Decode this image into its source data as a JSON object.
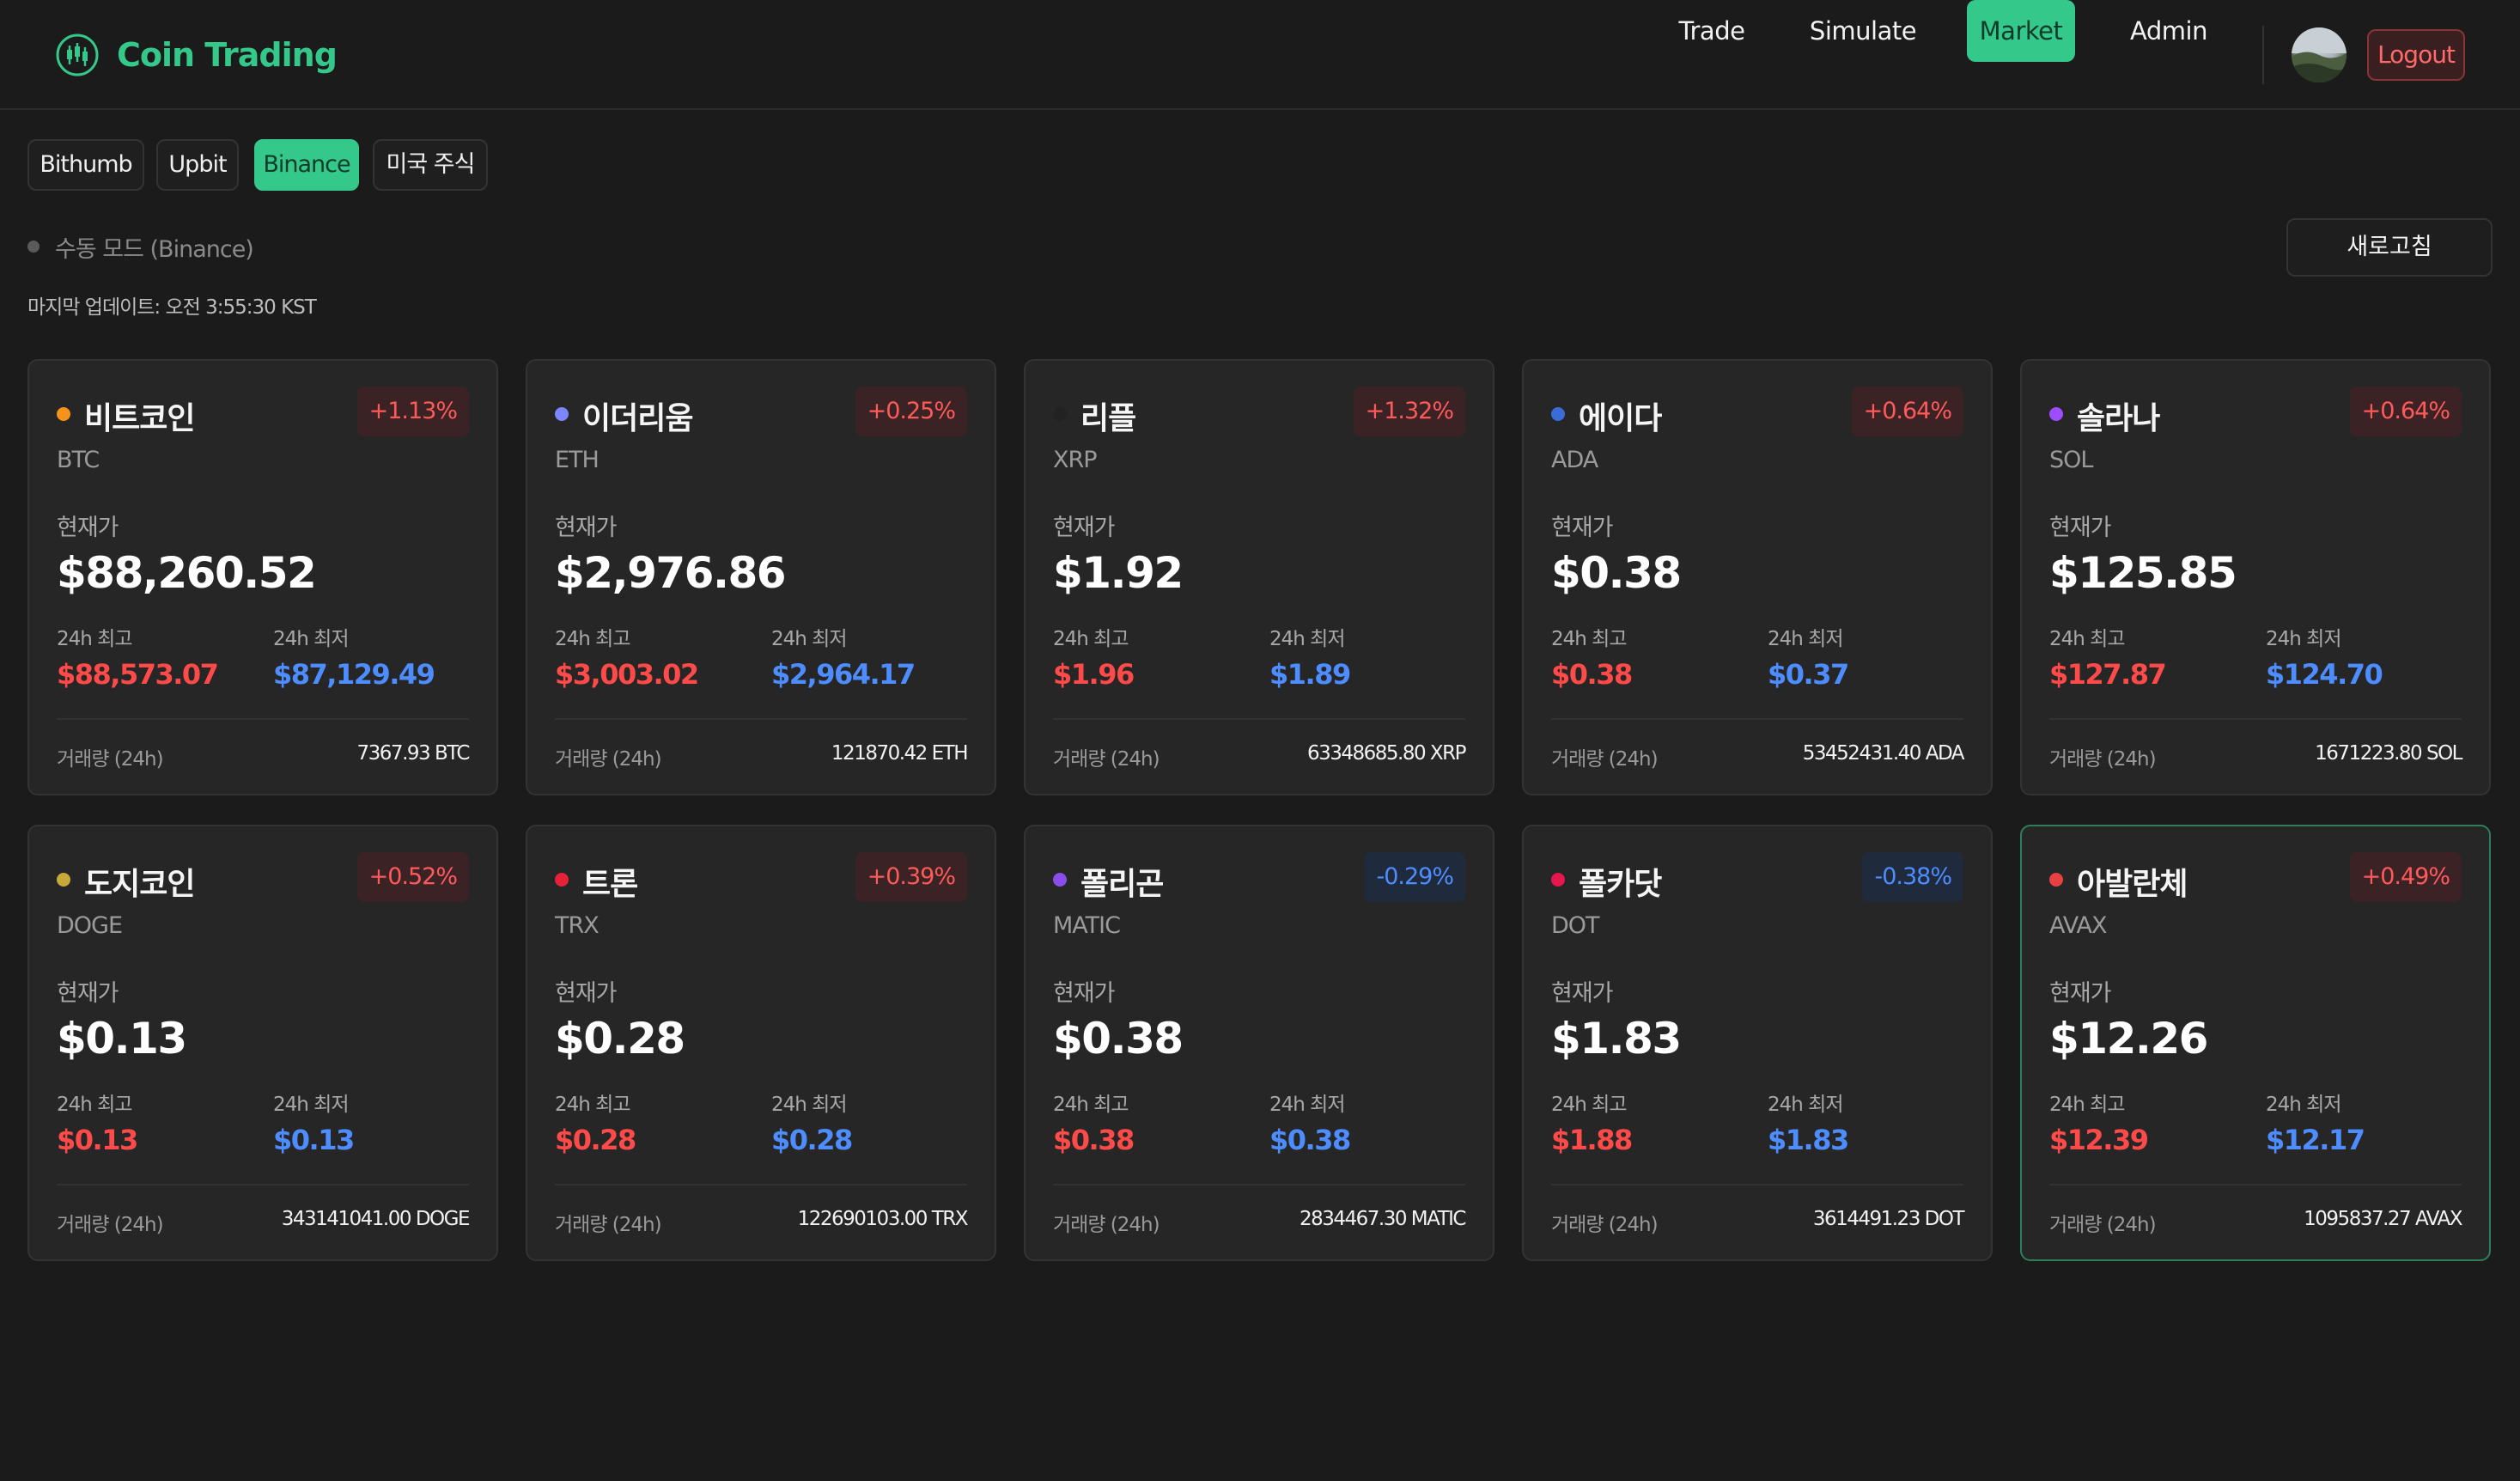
{
  "brand": {
    "title": "Coin Trading",
    "icon": "chart-candle-icon",
    "accent": "#34c98a"
  },
  "nav": {
    "items": [
      {
        "label": "Trade",
        "active": false
      },
      {
        "label": "Simulate",
        "active": false
      },
      {
        "label": "Market",
        "active": true
      },
      {
        "label": "Admin",
        "active": false
      }
    ],
    "logout_label": "Logout"
  },
  "exchange_tabs": [
    {
      "label": "Bithumb",
      "active": false
    },
    {
      "label": "Upbit",
      "active": false
    },
    {
      "label": "Binance",
      "active": true
    },
    {
      "label": "미국 주식",
      "active": false
    }
  ],
  "status": {
    "mode_text": "수동 모드 (Binance)",
    "last_updated": "마지막 업데이트: 오전 3:55:30 KST",
    "refresh_label": "새로고침"
  },
  "card_labels": {
    "current_price": "현재가",
    "high_24h": "24h 최고",
    "low_24h": "24h 최저",
    "volume_24h": "거래량 (24h)"
  },
  "coins": [
    {
      "name": "비트코인",
      "symbol": "BTC",
      "dot_color": "#f7931a",
      "change": "+1.13%",
      "direction": "up",
      "price": "$88,260.52",
      "high": "$88,573.07",
      "low": "$87,129.49",
      "volume": "7367.93 BTC",
      "selected": false
    },
    {
      "name": "이더리움",
      "symbol": "ETH",
      "dot_color": "#7b86ff",
      "change": "+0.25%",
      "direction": "up",
      "price": "$2,976.86",
      "high": "$3,003.02",
      "low": "$2,964.17",
      "volume": "121870.42 ETH",
      "selected": false
    },
    {
      "name": "리플",
      "symbol": "XRP",
      "dot_color": "#222222",
      "change": "+1.32%",
      "direction": "up",
      "price": "$1.92",
      "high": "$1.96",
      "low": "$1.89",
      "volume": "63348685.80 XRP",
      "selected": false
    },
    {
      "name": "에이다",
      "symbol": "ADA",
      "dot_color": "#3a6cd8",
      "change": "+0.64%",
      "direction": "up",
      "price": "$0.38",
      "high": "$0.38",
      "low": "$0.37",
      "volume": "53452431.40 ADA",
      "selected": false
    },
    {
      "name": "솔라나",
      "symbol": "SOL",
      "dot_color": "#9b4dff",
      "change": "+0.64%",
      "direction": "up",
      "price": "$125.85",
      "high": "$127.87",
      "low": "$124.70",
      "volume": "1671223.80 SOL",
      "selected": false
    },
    {
      "name": "도지코인",
      "symbol": "DOGE",
      "dot_color": "#c9a83a",
      "change": "+0.52%",
      "direction": "up",
      "price": "$0.13",
      "high": "$0.13",
      "low": "$0.13",
      "volume": "343141041.00 DOGE",
      "selected": false
    },
    {
      "name": "트론",
      "symbol": "TRX",
      "dot_color": "#e8213a",
      "change": "+0.39%",
      "direction": "up",
      "price": "$0.28",
      "high": "$0.28",
      "low": "$0.28",
      "volume": "122690103.00 TRX",
      "selected": false
    },
    {
      "name": "폴리곤",
      "symbol": "MATIC",
      "dot_color": "#8a4dea",
      "change": "-0.29%",
      "direction": "down",
      "price": "$0.38",
      "high": "$0.38",
      "low": "$0.38",
      "volume": "2834467.30 MATIC",
      "selected": false
    },
    {
      "name": "폴카닷",
      "symbol": "DOT",
      "dot_color": "#e6174f",
      "change": "-0.38%",
      "direction": "down",
      "price": "$1.83",
      "high": "$1.88",
      "low": "$1.83",
      "volume": "3614491.23 DOT",
      "selected": false
    },
    {
      "name": "아발란체",
      "symbol": "AVAX",
      "dot_color": "#e84142",
      "change": "+0.49%",
      "direction": "up",
      "price": "$12.26",
      "high": "$12.39",
      "low": "$12.17",
      "volume": "1095837.27 AVAX",
      "selected": true
    }
  ]
}
